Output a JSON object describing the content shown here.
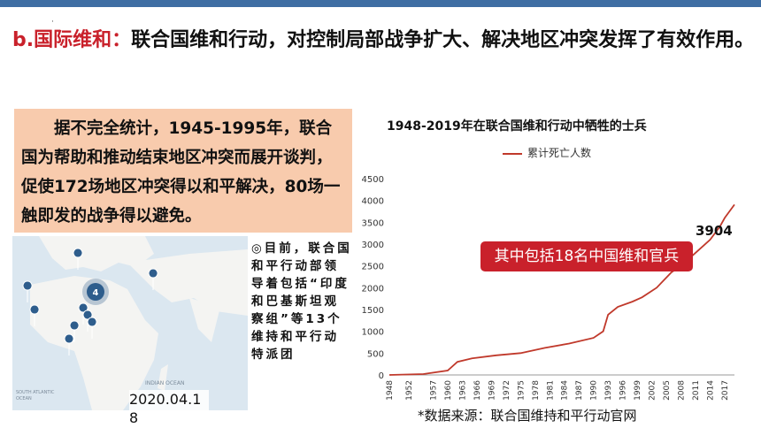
{
  "heading": {
    "lead": "b.国际维和：",
    "text": "联合国维和行动，对控制局部战争扩大、解决地区冲突发挥了有效作用。"
  },
  "stat_text": "据不完全统计，1945-1995年，联合国为帮助和推动结束地区冲突而展开谈判，促使172场地区冲突得以和平解决，80场一触即发的战争得以避免。",
  "map": {
    "date": "2020.04.18",
    "cluster_count": "4",
    "ocean_labels": [
      "INDIAN OCEAN",
      "SOUTH ATLANTIC OCEAN"
    ]
  },
  "note": "◎目前，联合国和平行动部领导着包括“印度和巴基斯坦观察组”等13个维持和平行动特派团",
  "callout": "其中包括18名中国维和官兵",
  "end_label": "3904",
  "source": "*数据来源：联合国维持和平行动官网",
  "chart_data": {
    "type": "line",
    "title": "1948-2019年在联合国维和行动中牺牲的士兵",
    "series": [
      {
        "name": "累计死亡人数",
        "color": "#c0392b",
        "x": [
          1948,
          1955,
          1960,
          1962,
          1965,
          1970,
          1975,
          1980,
          1985,
          1990,
          1992,
          1993,
          1995,
          1998,
          2000,
          2003,
          2006,
          2008,
          2010,
          2012,
          2014,
          2016,
          2017,
          2019
        ],
        "values": [
          0,
          20,
          100,
          300,
          380,
          450,
          500,
          620,
          720,
          850,
          1000,
          1380,
          1560,
          1680,
          1780,
          2000,
          2350,
          2500,
          2700,
          2900,
          3100,
          3400,
          3600,
          3904
        ]
      }
    ],
    "xlim": [
      1948,
      2019
    ],
    "ylim": [
      0,
      4500
    ],
    "yticks": [
      0,
      500,
      1000,
      1500,
      2000,
      2500,
      3000,
      3500,
      4000,
      4500
    ],
    "xticks": [
      1948,
      1952,
      1957,
      1960,
      1963,
      1966,
      1969,
      1972,
      1975,
      1978,
      1981,
      1984,
      1987,
      1990,
      1993,
      1996,
      1999,
      2002,
      2005,
      2008,
      2011,
      2014,
      2017
    ],
    "grid": false,
    "legend": "top"
  }
}
